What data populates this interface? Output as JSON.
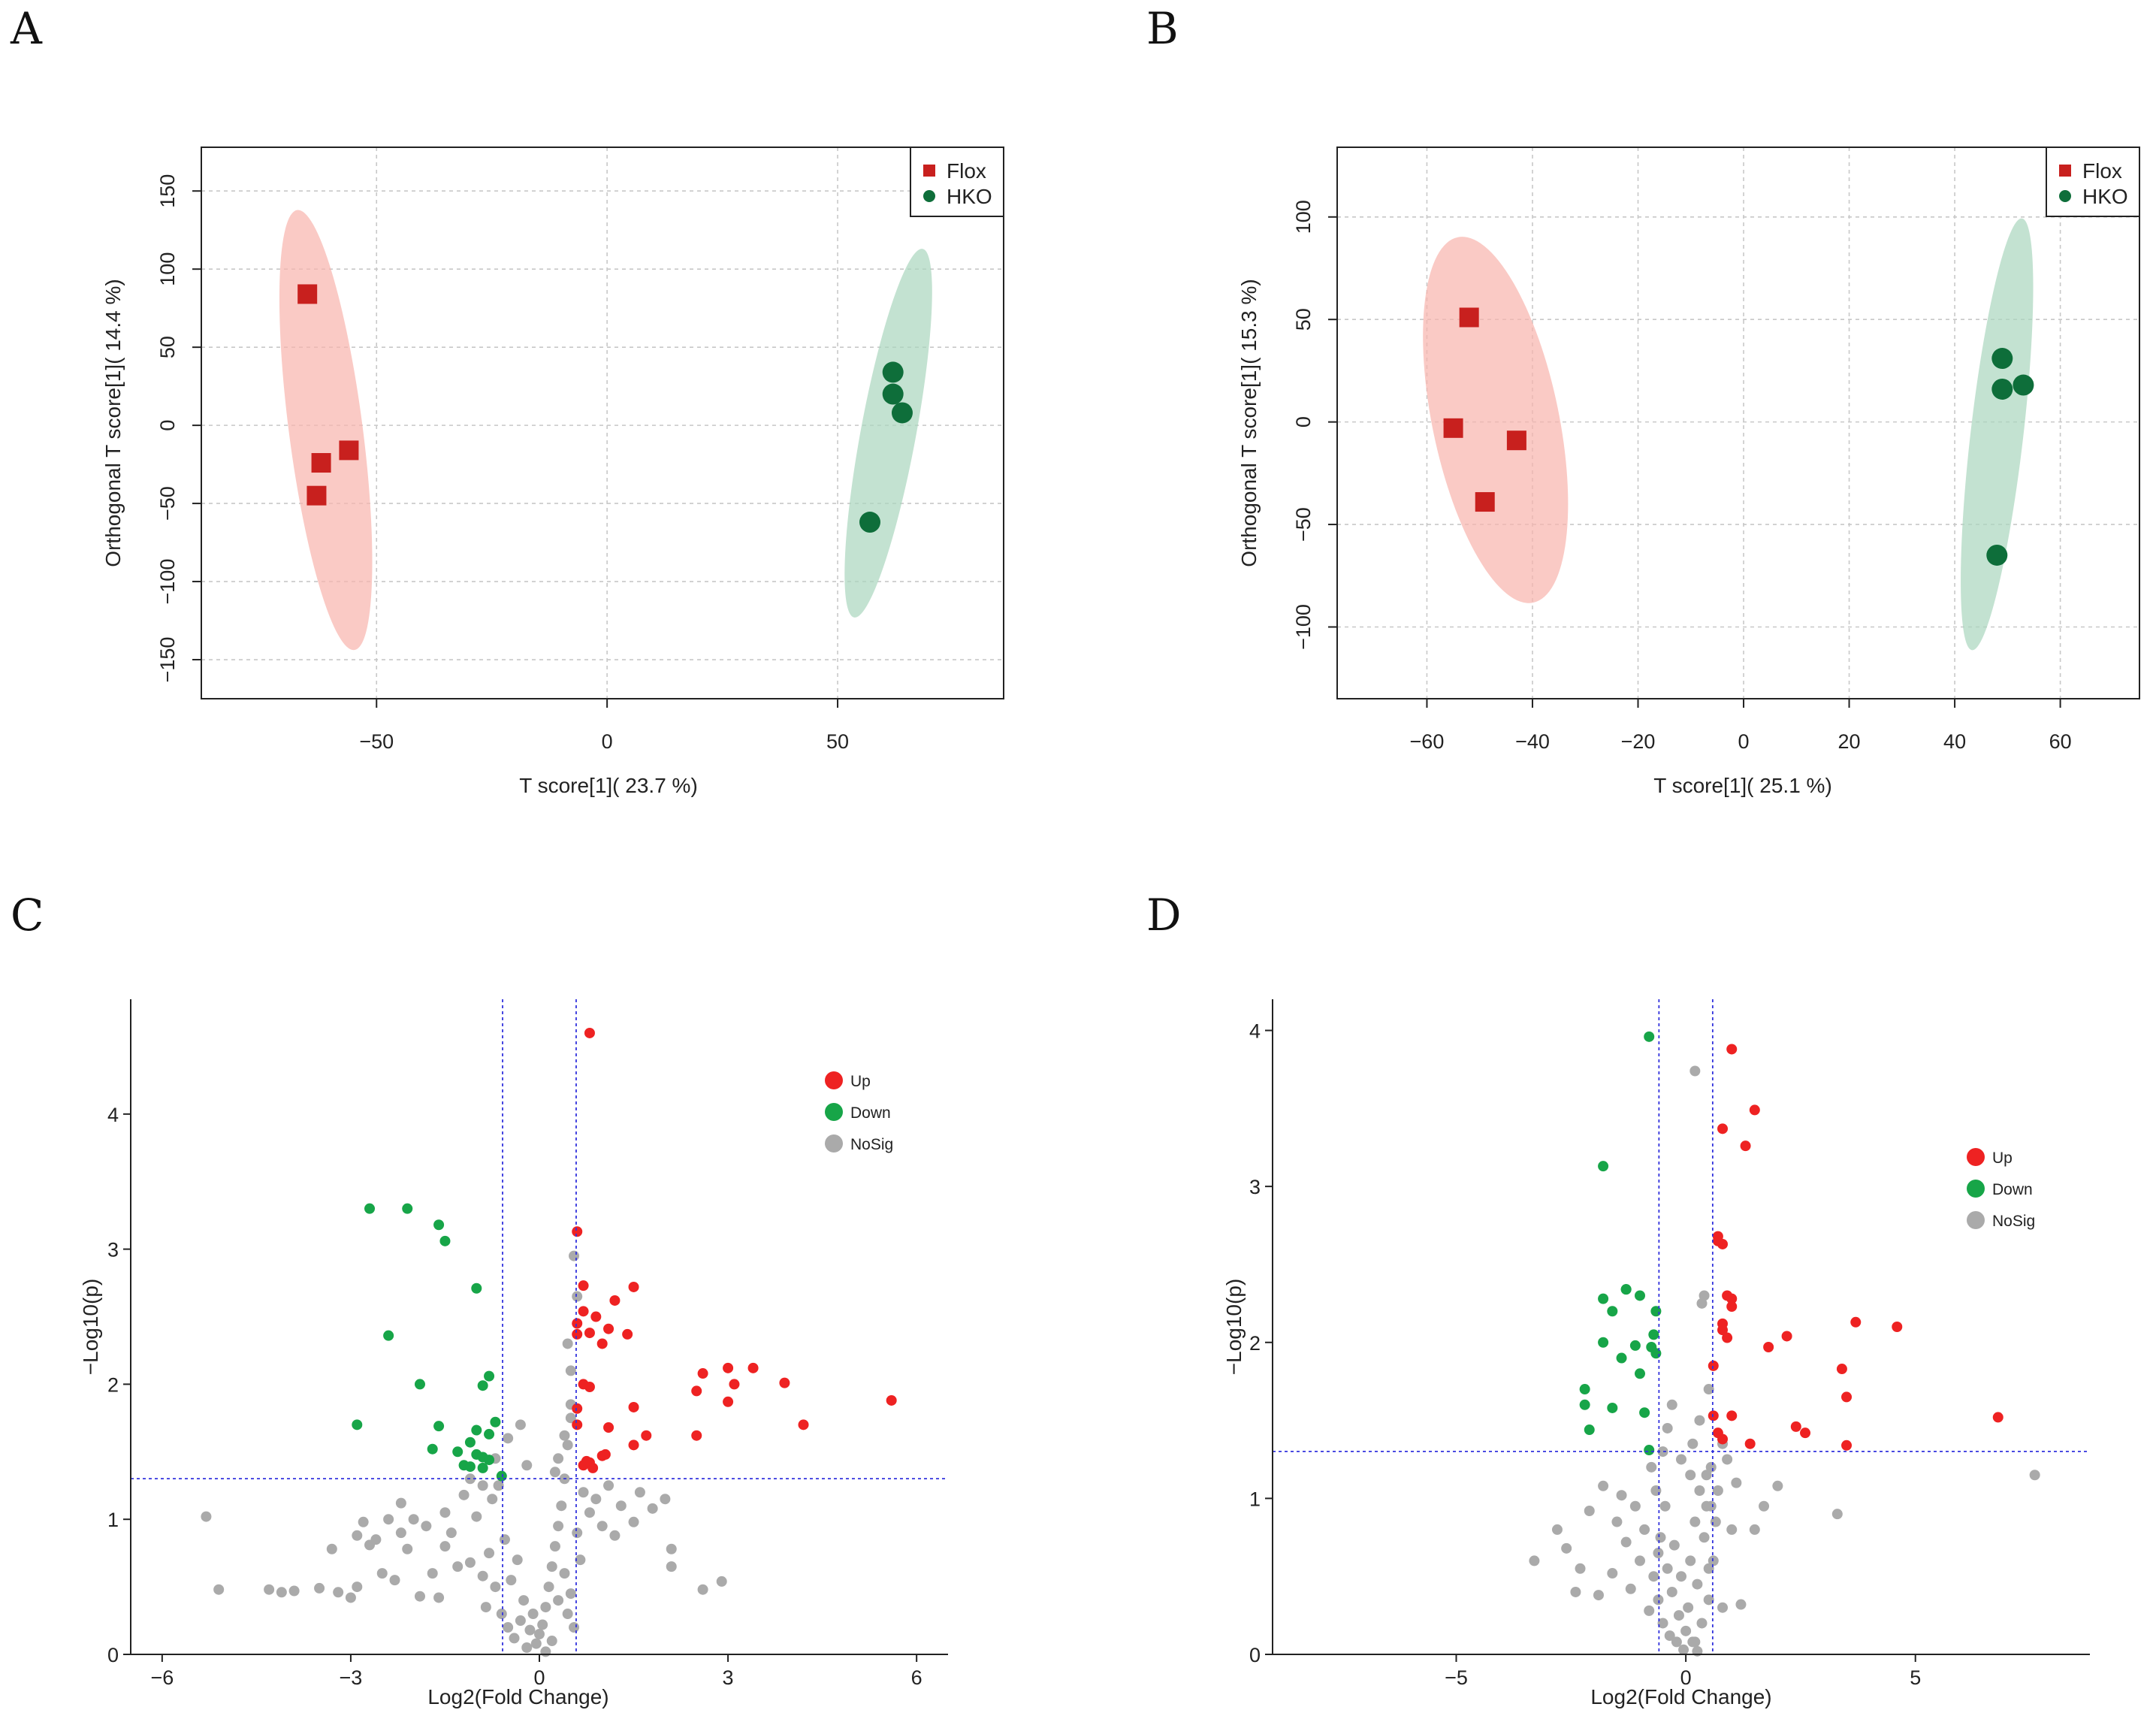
{
  "panel_labels": [
    "A",
    "B",
    "C",
    "D"
  ],
  "colors": {
    "flox": "#c8201e",
    "hko": "#0e6e3a",
    "flox_ellipse": "#f8b4ac",
    "hko_ellipse": "#a9d5bd",
    "up": "#ee2222",
    "down": "#17a548",
    "nosig": "#aaaaaa",
    "threshold": "#3333dd"
  },
  "chart_data": [
    {
      "type": "scatter",
      "panel": "A",
      "xlabel": "T score[1]( 23.7 %)",
      "ylabel": "Orthogonal T score[1]( 14.4 %)",
      "xlim": [
        -88,
        86
      ],
      "ylim": [
        -175,
        178
      ],
      "xticks": [
        -50,
        0,
        50
      ],
      "yticks": [
        -150,
        -100,
        -50,
        0,
        50,
        100,
        150
      ],
      "legend": {
        "position": "top-right",
        "entries": [
          "Flox",
          "HKO"
        ]
      },
      "series": [
        {
          "name": "Flox",
          "marker": "square",
          "points": [
            [
              -65,
              84
            ],
            [
              -62,
              -24
            ],
            [
              -63,
              -45
            ],
            [
              -56,
              -16
            ]
          ]
        },
        {
          "name": "HKO",
          "marker": "circle",
          "points": [
            [
              62,
              34
            ],
            [
              62,
              20
            ],
            [
              64,
              8
            ],
            [
              57,
              -62
            ]
          ]
        }
      ],
      "ellipses": [
        {
          "group": "Flox",
          "cx": -61,
          "cy": -3,
          "rx": 8,
          "ry": 142,
          "tilt": 0.044
        },
        {
          "group": "HKO",
          "cx": 61,
          "cy": -5,
          "rx": 6,
          "ry": 120,
          "tilt": -0.063
        }
      ]
    },
    {
      "type": "scatter",
      "panel": "B",
      "xlabel": "T score[1]( 25.1 %)",
      "ylabel": "Orthogonal T score[1]( 15.3 %)",
      "xlim": [
        -77,
        75
      ],
      "ylim": [
        -135,
        134
      ],
      "xticks": [
        -60,
        -40,
        -20,
        0,
        20,
        40,
        60
      ],
      "yticks": [
        -100,
        -50,
        0,
        50,
        100
      ],
      "legend": {
        "position": "top-right",
        "entries": [
          "Flox",
          "HKO"
        ]
      },
      "series": [
        {
          "name": "Flox",
          "marker": "square",
          "points": [
            [
              -52,
              51
            ],
            [
              -55,
              -3
            ],
            [
              -49,
              -39
            ],
            [
              -43,
              -9
            ]
          ]
        },
        {
          "name": "HKO",
          "marker": "circle",
          "points": [
            [
              49,
              31
            ],
            [
              49,
              16
            ],
            [
              53,
              18
            ],
            [
              48,
              -65
            ]
          ]
        }
      ],
      "ellipses": [
        {
          "group": "Flox",
          "cx": -47,
          "cy": 1,
          "rx": 12,
          "ry": 91,
          "tilt": 0.08
        },
        {
          "group": "HKO",
          "cx": 48,
          "cy": -6,
          "rx": 5,
          "ry": 106,
          "tilt": -0.045
        }
      ]
    },
    {
      "type": "scatter",
      "panel": "C",
      "xlabel": "Log2(Fold Change)",
      "ylabel": "−Log10(p)",
      "xlim": [
        -6.5,
        6.5
      ],
      "ylim": [
        0,
        4.85
      ],
      "xticks": [
        -6,
        -3,
        0,
        3,
        6
      ],
      "yticks": [
        0,
        1,
        2,
        3,
        4
      ],
      "thresholds": {
        "x": [
          -0.585,
          0.585
        ],
        "y": 1.301
      },
      "legend": {
        "position": "top-right",
        "entries": [
          "Up",
          "Down",
          "NoSig"
        ]
      },
      "up": [
        [
          0.8,
          4.6
        ],
        [
          0.6,
          3.13
        ],
        [
          0.7,
          2.73
        ],
        [
          0.7,
          2.54
        ],
        [
          0.9,
          2.5
        ],
        [
          1.2,
          2.62
        ],
        [
          1.5,
          2.72
        ],
        [
          0.6,
          2.45
        ],
        [
          0.8,
          2.38
        ],
        [
          1.1,
          2.41
        ],
        [
          1.4,
          2.37
        ],
        [
          0.6,
          2.37
        ],
        [
          1.0,
          2.3
        ],
        [
          2.6,
          2.08
        ],
        [
          3.0,
          2.12
        ],
        [
          3.4,
          2.12
        ],
        [
          3.1,
          2.0
        ],
        [
          3.9,
          2.01
        ],
        [
          2.5,
          1.95
        ],
        [
          0.7,
          2.0
        ],
        [
          0.8,
          1.98
        ],
        [
          0.6,
          1.82
        ],
        [
          1.5,
          1.83
        ],
        [
          3.0,
          1.87
        ],
        [
          0.6,
          1.7
        ],
        [
          1.1,
          1.68
        ],
        [
          4.2,
          1.7
        ],
        [
          1.7,
          1.62
        ],
        [
          2.5,
          1.62
        ],
        [
          1.5,
          1.55
        ],
        [
          5.6,
          1.88
        ],
        [
          1.0,
          1.47
        ],
        [
          1.05,
          1.48
        ],
        [
          0.7,
          1.4
        ],
        [
          0.8,
          1.42
        ],
        [
          0.85,
          1.38
        ],
        [
          0.75,
          1.43
        ]
      ],
      "down": [
        [
          -2.7,
          3.3
        ],
        [
          -2.1,
          3.3
        ],
        [
          -1.6,
          3.18
        ],
        [
          -1.5,
          3.06
        ],
        [
          -1.0,
          2.71
        ],
        [
          -2.4,
          2.36
        ],
        [
          -1.9,
          2.0
        ],
        [
          -0.8,
          2.06
        ],
        [
          -0.9,
          1.99
        ],
        [
          -2.9,
          1.7
        ],
        [
          -1.6,
          1.69
        ],
        [
          -1.0,
          1.66
        ],
        [
          -0.7,
          1.72
        ],
        [
          -0.8,
          1.63
        ],
        [
          -1.1,
          1.57
        ],
        [
          -1.7,
          1.52
        ],
        [
          -1.0,
          1.48
        ],
        [
          -1.3,
          1.5
        ],
        [
          -0.9,
          1.46
        ],
        [
          -1.2,
          1.4
        ],
        [
          -0.8,
          1.44
        ],
        [
          -1.1,
          1.39
        ],
        [
          -0.9,
          1.38
        ],
        [
          -0.6,
          1.32
        ]
      ],
      "nosig": [
        [
          -5.3,
          1.02
        ],
        [
          -5.1,
          0.48
        ],
        [
          -4.3,
          0.48
        ],
        [
          -4.1,
          0.46
        ],
        [
          -3.9,
          0.47
        ],
        [
          -3.5,
          0.49
        ],
        [
          -3.3,
          0.78
        ],
        [
          -3.2,
          0.46
        ],
        [
          -3.0,
          0.42
        ],
        [
          -2.9,
          0.88
        ],
        [
          -2.8,
          0.98
        ],
        [
          -2.7,
          0.81
        ],
        [
          -2.6,
          0.85
        ],
        [
          -2.5,
          0.6
        ],
        [
          -2.4,
          1.0
        ],
        [
          -2.3,
          0.55
        ],
        [
          -2.2,
          0.9
        ],
        [
          -2.1,
          0.78
        ],
        [
          -2.0,
          1.0
        ],
        [
          -1.9,
          0.43
        ],
        [
          -1.8,
          0.95
        ],
        [
          -1.7,
          0.6
        ],
        [
          -1.6,
          0.42
        ],
        [
          -1.5,
          0.8
        ],
        [
          -1.4,
          0.9
        ],
        [
          -1.3,
          0.65
        ],
        [
          -1.2,
          1.18
        ],
        [
          -1.1,
          0.68
        ],
        [
          -1.0,
          1.02
        ],
        [
          -0.9,
          0.58
        ],
        [
          -0.85,
          0.35
        ],
        [
          -0.8,
          0.75
        ],
        [
          -0.7,
          0.5
        ],
        [
          -0.65,
          1.25
        ],
        [
          -0.6,
          0.3
        ],
        [
          -0.55,
          0.85
        ],
        [
          -0.5,
          0.2
        ],
        [
          -0.45,
          0.55
        ],
        [
          -0.4,
          0.12
        ],
        [
          -0.35,
          0.7
        ],
        [
          -0.3,
          0.25
        ],
        [
          -0.25,
          0.4
        ],
        [
          -0.2,
          0.05
        ],
        [
          -0.15,
          0.18
        ],
        [
          -0.1,
          0.3
        ],
        [
          -0.05,
          0.08
        ],
        [
          0.0,
          0.15
        ],
        [
          0.05,
          0.22
        ],
        [
          0.1,
          0.35
        ],
        [
          0.15,
          0.5
        ],
        [
          0.2,
          0.65
        ],
        [
          0.25,
          0.8
        ],
        [
          0.3,
          0.95
        ],
        [
          0.35,
          1.1
        ],
        [
          0.4,
          1.3
        ],
        [
          0.45,
          1.55
        ],
        [
          0.5,
          1.75
        ],
        [
          0.55,
          2.95
        ],
        [
          0.6,
          2.65
        ],
        [
          0.4,
          0.6
        ],
        [
          0.45,
          0.3
        ],
        [
          0.5,
          0.45
        ],
        [
          0.55,
          0.2
        ],
        [
          0.3,
          0.4
        ],
        [
          0.2,
          0.1
        ],
        [
          0.1,
          0.02
        ],
        [
          0.6,
          0.9
        ],
        [
          0.65,
          0.7
        ],
        [
          0.7,
          1.2
        ],
        [
          0.8,
          1.05
        ],
        [
          0.9,
          1.15
        ],
        [
          1.0,
          0.95
        ],
        [
          1.1,
          1.25
        ],
        [
          1.2,
          0.88
        ],
        [
          1.3,
          1.1
        ],
        [
          1.5,
          0.98
        ],
        [
          1.6,
          1.2
        ],
        [
          1.8,
          1.08
        ],
        [
          2.0,
          1.15
        ],
        [
          2.1,
          0.78
        ],
        [
          2.1,
          0.65
        ],
        [
          2.6,
          0.48
        ],
        [
          2.9,
          0.54
        ],
        [
          0.4,
          1.62
        ],
        [
          0.5,
          1.85
        ],
        [
          0.3,
          1.45
        ],
        [
          -0.3,
          1.7
        ],
        [
          -0.5,
          1.6
        ],
        [
          -0.7,
          1.45
        ],
        [
          -0.2,
          1.4
        ],
        [
          0.25,
          1.35
        ],
        [
          0.45,
          2.3
        ],
        [
          0.5,
          2.1
        ],
        [
          -1.1,
          1.3
        ],
        [
          -0.9,
          1.25
        ],
        [
          -0.75,
          1.15
        ],
        [
          -1.5,
          1.05
        ],
        [
          -2.2,
          1.12
        ],
        [
          -2.9,
          0.5
        ]
      ]
    },
    {
      "type": "scatter",
      "panel": "D",
      "xlabel": "Log2(Fold Change)",
      "ylabel": "−Log10(p)",
      "xlim": [
        -9,
        8.8
      ],
      "ylim": [
        0,
        4.2
      ],
      "xticks": [
        -5,
        0,
        5
      ],
      "yticks": [
        0,
        1,
        2,
        3,
        4
      ],
      "thresholds": {
        "x": [
          -0.585,
          0.585
        ],
        "y": 1.301
      },
      "legend": {
        "position": "top-right",
        "entries": [
          "Up",
          "Down",
          "NoSig"
        ]
      },
      "up": [
        [
          1.0,
          3.88
        ],
        [
          1.5,
          3.49
        ],
        [
          0.8,
          3.37
        ],
        [
          1.3,
          3.26
        ],
        [
          0.7,
          2.68
        ],
        [
          0.8,
          2.63
        ],
        [
          0.7,
          2.65
        ],
        [
          0.9,
          2.3
        ],
        [
          1.0,
          2.28
        ],
        [
          1.0,
          2.23
        ],
        [
          0.8,
          2.12
        ],
        [
          0.8,
          2.08
        ],
        [
          0.9,
          2.03
        ],
        [
          1.8,
          1.97
        ],
        [
          2.2,
          2.04
        ],
        [
          3.7,
          2.13
        ],
        [
          4.6,
          2.1
        ],
        [
          0.6,
          1.85
        ],
        [
          3.4,
          1.83
        ],
        [
          3.5,
          1.65
        ],
        [
          0.6,
          1.53
        ],
        [
          1.0,
          1.53
        ],
        [
          2.4,
          1.46
        ],
        [
          2.6,
          1.42
        ],
        [
          0.7,
          1.42
        ],
        [
          0.8,
          1.38
        ],
        [
          1.4,
          1.35
        ],
        [
          3.5,
          1.34
        ],
        [
          6.8,
          1.52
        ]
      ],
      "down": [
        [
          -0.8,
          3.96
        ],
        [
          -1.8,
          3.13
        ],
        [
          -1.3,
          2.34
        ],
        [
          -1.3,
          2.34
        ],
        [
          -1.0,
          2.3
        ],
        [
          -1.8,
          2.28
        ],
        [
          -1.6,
          2.2
        ],
        [
          -0.65,
          2.2
        ],
        [
          -1.8,
          2.0
        ],
        [
          -1.1,
          1.98
        ],
        [
          -0.75,
          1.97
        ],
        [
          -0.7,
          2.05
        ],
        [
          -0.65,
          1.93
        ],
        [
          -1.4,
          1.9
        ],
        [
          -1.0,
          1.8
        ],
        [
          -2.2,
          1.7
        ],
        [
          -2.2,
          1.6
        ],
        [
          -1.6,
          1.58
        ],
        [
          -0.9,
          1.55
        ],
        [
          -2.1,
          1.44
        ],
        [
          -0.8,
          1.31
        ]
      ],
      "nosig": [
        [
          0.2,
          3.74
        ],
        [
          -3.3,
          0.6
        ],
        [
          -2.8,
          0.8
        ],
        [
          -2.6,
          0.68
        ],
        [
          -2.4,
          0.4
        ],
        [
          -2.3,
          0.55
        ],
        [
          -2.1,
          0.92
        ],
        [
          -1.9,
          0.38
        ],
        [
          -1.8,
          1.08
        ],
        [
          -1.6,
          0.52
        ],
        [
          -1.5,
          0.85
        ],
        [
          -1.4,
          1.02
        ],
        [
          -1.3,
          0.72
        ],
        [
          -1.2,
          0.42
        ],
        [
          -1.1,
          0.95
        ],
        [
          -1.0,
          0.6
        ],
        [
          -0.9,
          0.8
        ],
        [
          -0.8,
          0.28
        ],
        [
          -0.75,
          1.2
        ],
        [
          -0.7,
          0.5
        ],
        [
          -0.65,
          1.05
        ],
        [
          -0.6,
          0.35
        ],
        [
          -0.55,
          0.75
        ],
        [
          -0.5,
          0.2
        ],
        [
          -0.45,
          0.95
        ],
        [
          -0.4,
          0.55
        ],
        [
          -0.35,
          0.12
        ],
        [
          -0.3,
          0.4
        ],
        [
          -0.25,
          0.7
        ],
        [
          -0.2,
          0.08
        ],
        [
          -0.15,
          0.25
        ],
        [
          -0.1,
          0.5
        ],
        [
          -0.05,
          0.03
        ],
        [
          0.0,
          0.15
        ],
        [
          0.05,
          0.3
        ],
        [
          0.1,
          0.6
        ],
        [
          0.15,
          0.08
        ],
        [
          0.2,
          0.85
        ],
        [
          0.25,
          0.45
        ],
        [
          0.3,
          1.05
        ],
        [
          0.35,
          0.2
        ],
        [
          0.4,
          0.75
        ],
        [
          0.45,
          1.15
        ],
        [
          0.5,
          0.35
        ],
        [
          0.55,
          0.95
        ],
        [
          0.6,
          0.6
        ],
        [
          0.7,
          1.05
        ],
        [
          0.8,
          0.3
        ],
        [
          0.9,
          1.25
        ],
        [
          1.0,
          0.8
        ],
        [
          1.1,
          1.1
        ],
        [
          1.2,
          0.32
        ],
        [
          1.5,
          0.8
        ],
        [
          1.7,
          0.95
        ],
        [
          2.0,
          1.08
        ],
        [
          3.3,
          0.9
        ],
        [
          7.6,
          1.15
        ],
        [
          -0.3,
          1.6
        ],
        [
          0.15,
          1.35
        ],
        [
          -0.1,
          1.25
        ],
        [
          0.4,
          2.3
        ],
        [
          0.35,
          2.25
        ],
        [
          0.5,
          1.7
        ],
        [
          0.3,
          1.5
        ],
        [
          -0.4,
          1.45
        ],
        [
          0.5,
          0.55
        ],
        [
          0.1,
          1.15
        ],
        [
          -0.5,
          1.3
        ],
        [
          0.45,
          0.95
        ],
        [
          0.2,
          0.08
        ],
        [
          0.25,
          0.02
        ],
        [
          -0.6,
          0.65
        ],
        [
          0.65,
          0.85
        ],
        [
          0.8,
          1.35
        ],
        [
          0.55,
          1.2
        ]
      ]
    }
  ]
}
